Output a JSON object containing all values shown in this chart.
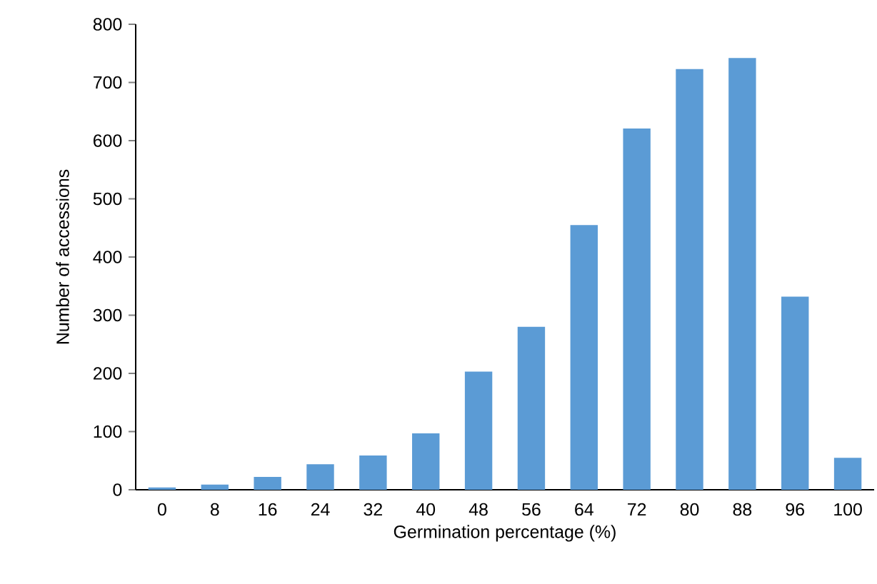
{
  "chart_data": {
    "type": "bar",
    "xlabel": "Germination percentage  (%)",
    "ylabel": "Number of accessions",
    "categories": [
      "0",
      "8",
      "16",
      "24",
      "32",
      "40",
      "48",
      "56",
      "64",
      "72",
      "80",
      "88",
      "96",
      "100"
    ],
    "values": [
      4,
      9,
      22,
      44,
      59,
      97,
      203,
      280,
      455,
      621,
      723,
      742,
      332,
      55
    ],
    "color": "#5b9bd5",
    "ylim": [
      0,
      800
    ],
    "yticks": [
      0,
      100,
      200,
      300,
      400,
      500,
      600,
      700,
      800
    ]
  }
}
